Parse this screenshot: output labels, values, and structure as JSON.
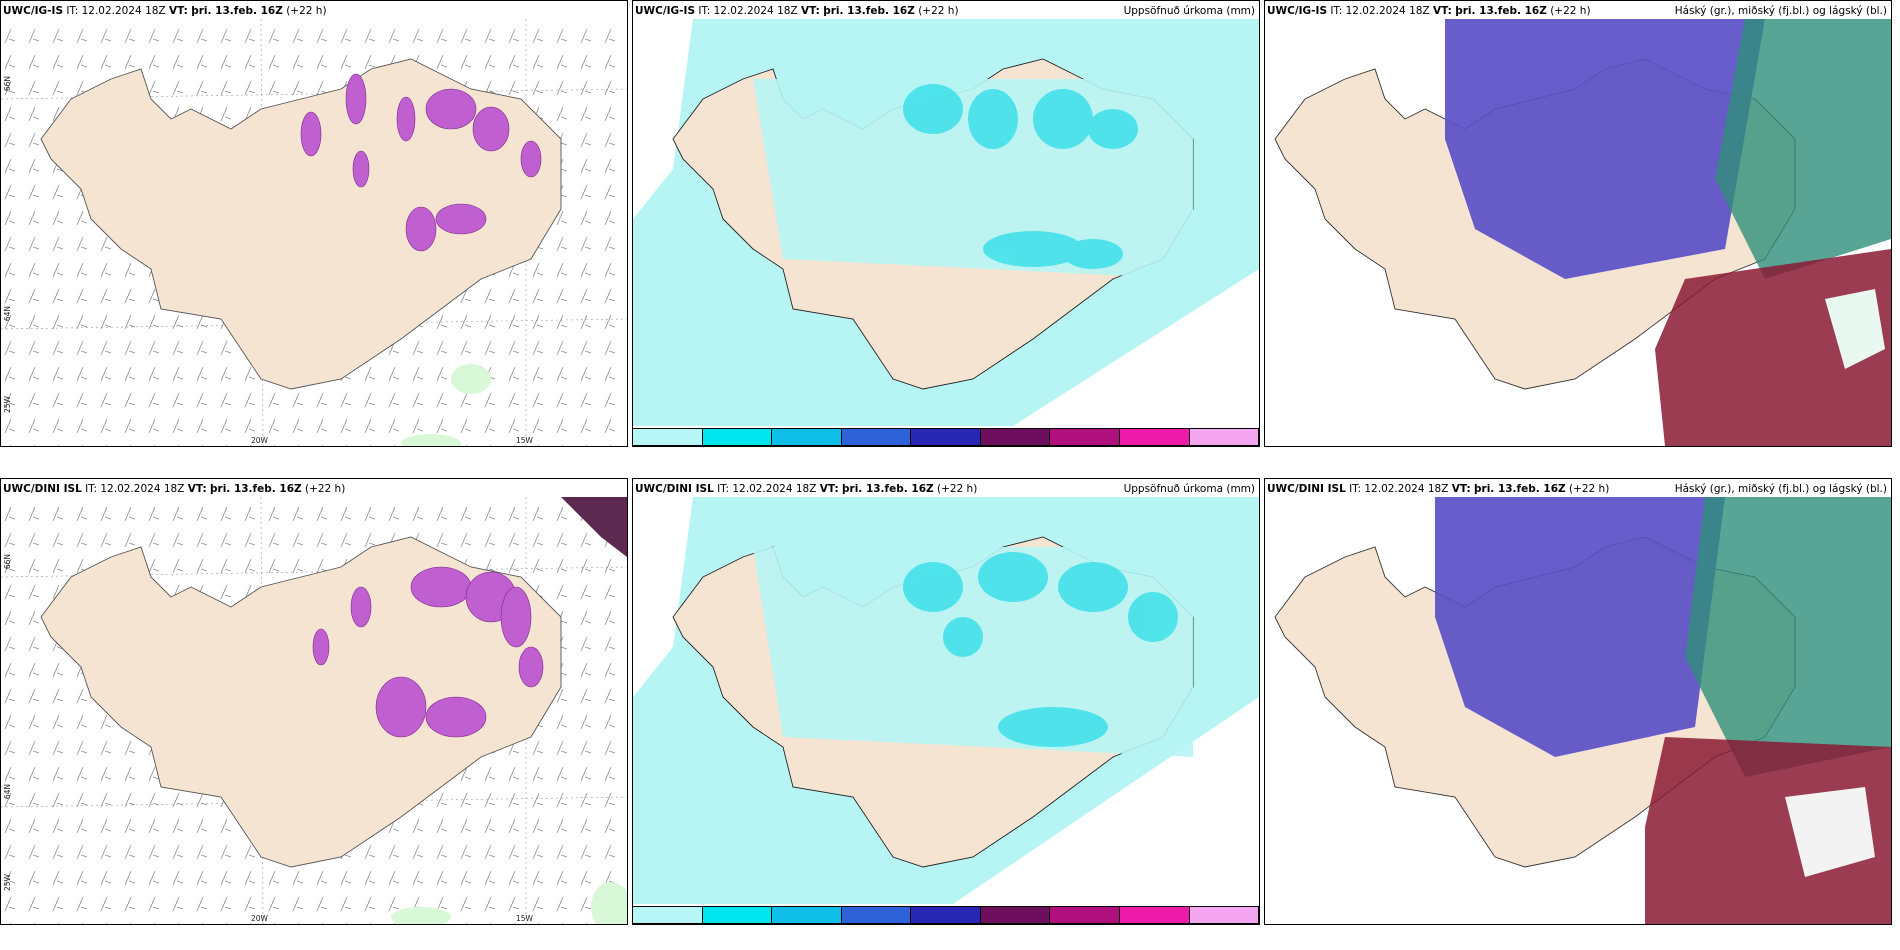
{
  "panels": [
    {
      "model": "UWC/IG-IS",
      "it": "12.02.2024 18Z",
      "vt": "þri. 13.feb. 16Z",
      "lead": "(+22 h)",
      "right": ""
    },
    {
      "model": "UWC/IG-IS",
      "it": "12.02.2024 18Z",
      "vt": "þri. 13.feb. 16Z",
      "lead": "(+22 h)",
      "right": "Uppsöfnuð úrkoma (mm)"
    },
    {
      "model": "UWC/IG-IS",
      "it": "12.02.2024 18Z",
      "vt": "þri. 13.feb. 16Z",
      "lead": "(+22 h)",
      "right": "Háský (gr.), miðský (fj.bl.) og lágský (bl.)"
    },
    {
      "model": "UWC/DINI ISL",
      "it": "12.02.2024 18Z",
      "vt": "þri. 13.feb. 16Z",
      "lead": "(+22 h)",
      "right": ""
    },
    {
      "model": "UWC/DINI ISL",
      "it": "12.02.2024 18Z",
      "vt": "þri. 13.feb. 16Z",
      "lead": "(+22 h)",
      "right": "Uppsöfnuð úrkoma (mm)"
    },
    {
      "model": "UWC/DINI ISL",
      "it": "12.02.2024 18Z",
      "vt": "þri. 13.feb. 16Z",
      "lead": "(+22 h)",
      "right": "Háský (gr.), miðský (fj.bl.) og lágský (bl.)"
    }
  ],
  "labels": {
    "it": "IT:",
    "vt": "VT:"
  },
  "axes": {
    "lat66": "66N",
    "lat64": "64N",
    "lon25": "25W",
    "lon20": "20W",
    "lon15": "15W"
  },
  "colorbar": {
    "ticks": [
      "1",
      "10",
      "25",
      "50",
      "75",
      "100",
      "150",
      "200",
      "400"
    ],
    "colors": [
      "#b7f7f7",
      "#00e5ee",
      "#10bfe8",
      "#2e62d8",
      "#2727b4",
      "#6e0f5e",
      "#b0107e",
      "#ee1aaa",
      "#f4a7f0"
    ]
  },
  "colors": {
    "land": "#f5e4d2",
    "sea": "#ffffff",
    "precip_light": "#b7f5f5",
    "precip_med": "#4be0ea",
    "snow": "#d15fd8",
    "cloud_high": "#5a4fc7",
    "cloud_mid": "#2f8f7a",
    "cloud_low": "#8a1a35"
  }
}
